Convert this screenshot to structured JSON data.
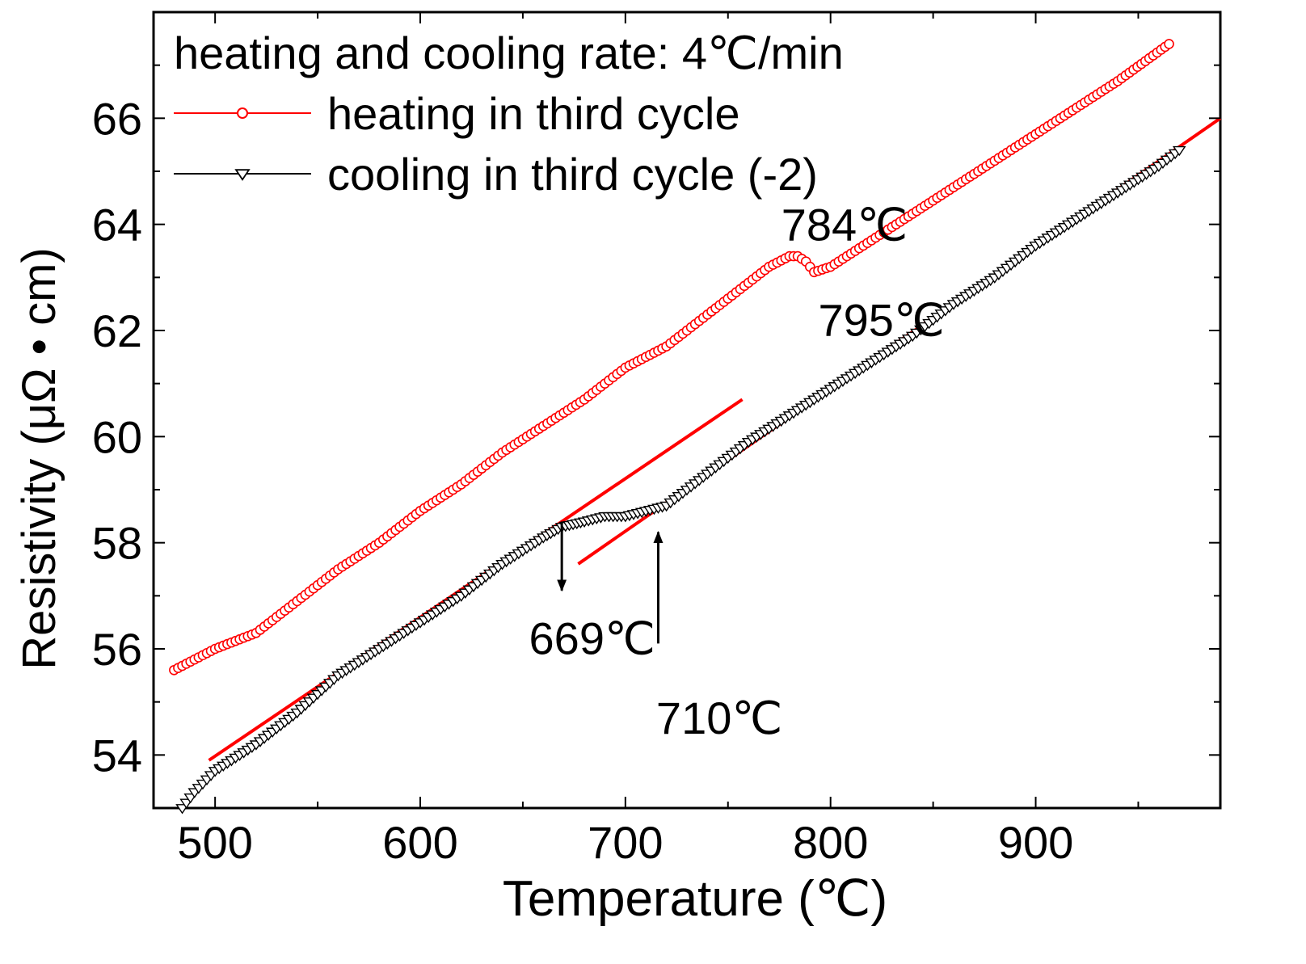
{
  "chart_data": {
    "type": "scatter",
    "xlabel": "Temperature (℃)",
    "ylabel": "Resistivity (μΩ • cm)",
    "xlim": [
      470,
      990
    ],
    "ylim": [
      53,
      68
    ],
    "xticks": [
      500,
      600,
      700,
      800,
      900
    ],
    "yticks": [
      54,
      56,
      58,
      60,
      62,
      64,
      66
    ],
    "legend_title": "heating and cooling rate: 4℃/min",
    "legend_position": "top-left",
    "series": [
      {
        "name": "heating in third cycle",
        "marker": "circle",
        "color": "#ff0000",
        "points": [
          [
            480,
            55.6
          ],
          [
            500,
            56.0
          ],
          [
            520,
            56.3
          ],
          [
            540,
            56.9
          ],
          [
            560,
            57.5
          ],
          [
            580,
            58.0
          ],
          [
            600,
            58.6
          ],
          [
            620,
            59.1
          ],
          [
            640,
            59.7
          ],
          [
            660,
            60.2
          ],
          [
            680,
            60.7
          ],
          [
            690,
            61.0
          ],
          [
            700,
            61.3
          ],
          [
            720,
            61.7
          ],
          [
            740,
            62.3
          ],
          [
            760,
            62.9
          ],
          [
            770,
            63.2
          ],
          [
            780,
            63.4
          ],
          [
            784,
            63.4
          ],
          [
            788,
            63.3
          ],
          [
            792,
            63.1
          ],
          [
            800,
            63.2
          ],
          [
            820,
            63.7
          ],
          [
            840,
            64.2
          ],
          [
            860,
            64.7
          ],
          [
            880,
            65.2
          ],
          [
            900,
            65.7
          ],
          [
            920,
            66.2
          ],
          [
            940,
            66.7
          ],
          [
            965,
            67.4
          ]
        ]
      },
      {
        "name": "cooling in third cycle (-2)",
        "marker": "triangle-down",
        "color": "#000000",
        "points": [
          [
            484,
            53.0
          ],
          [
            490,
            53.3
          ],
          [
            500,
            53.7
          ],
          [
            520,
            54.2
          ],
          [
            540,
            54.8
          ],
          [
            560,
            55.5
          ],
          [
            580,
            56.0
          ],
          [
            600,
            56.5
          ],
          [
            620,
            57.0
          ],
          [
            640,
            57.6
          ],
          [
            660,
            58.1
          ],
          [
            669,
            58.3
          ],
          [
            680,
            58.4
          ],
          [
            690,
            58.5
          ],
          [
            700,
            58.5
          ],
          [
            710,
            58.6
          ],
          [
            720,
            58.7
          ],
          [
            740,
            59.3
          ],
          [
            760,
            59.9
          ],
          [
            780,
            60.4
          ],
          [
            800,
            60.9
          ],
          [
            820,
            61.4
          ],
          [
            840,
            61.9
          ],
          [
            860,
            62.5
          ],
          [
            880,
            63.0
          ],
          [
            900,
            63.6
          ],
          [
            920,
            64.1
          ],
          [
            940,
            64.6
          ],
          [
            960,
            65.1
          ],
          [
            970,
            65.4
          ]
        ]
      }
    ],
    "fit_lines": [
      {
        "name": "fit-low",
        "color": "#ff0000",
        "from": [
          497,
          53.9
        ],
        "to": [
          757,
          60.7
        ]
      },
      {
        "name": "fit-high",
        "color": "#ff0000",
        "from": [
          677,
          57.6
        ],
        "to": [
          990,
          66.0
        ]
      }
    ],
    "annotations": [
      {
        "name": "annotation-784",
        "text": "784℃",
        "at": [
          776,
          63.7
        ]
      },
      {
        "name": "annotation-795",
        "text": "795℃",
        "at": [
          794,
          61.9
        ]
      },
      {
        "name": "annotation-669",
        "text": "669℃",
        "at": [
          653,
          55.9
        ]
      },
      {
        "name": "annotation-710",
        "text": "710℃",
        "at": [
          715,
          54.4
        ]
      }
    ],
    "arrows": [
      {
        "name": "arrow-669",
        "from": [
          669,
          58.4
        ],
        "to": [
          669,
          57.1
        ]
      },
      {
        "name": "arrow-710",
        "from": [
          716,
          56.1
        ],
        "to": [
          716,
          58.2
        ]
      }
    ]
  }
}
